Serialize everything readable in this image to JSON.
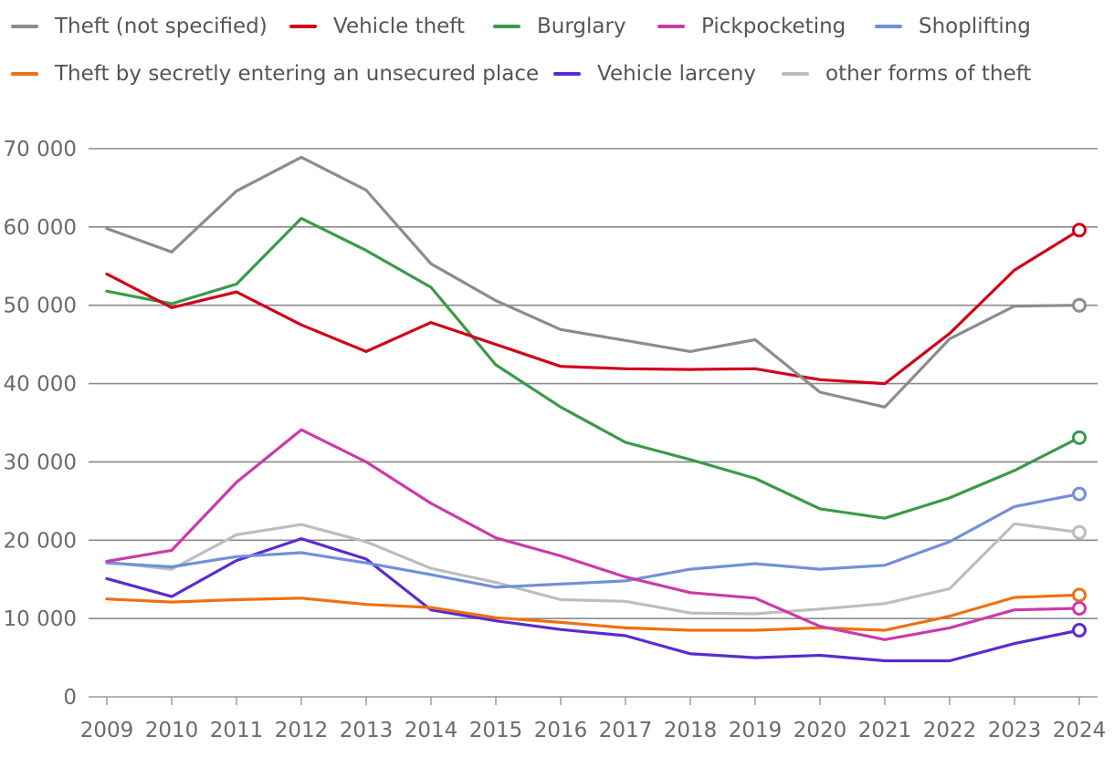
{
  "chart_data": {
    "type": "line",
    "title": "",
    "xlabel": "",
    "ylabel": "",
    "x": [
      "2009",
      "2010",
      "2011",
      "2012",
      "2013",
      "2014",
      "2015",
      "2016",
      "2017",
      "2018",
      "2019",
      "2020",
      "2021",
      "2022",
      "2023",
      "2024"
    ],
    "ylim": [
      0,
      70000
    ],
    "y_ticks": [
      0,
      10000,
      20000,
      30000,
      40000,
      50000,
      60000,
      70000
    ],
    "y_tick_labels": [
      "0",
      "10 000",
      "20 000",
      "30 000",
      "40 000",
      "50 000",
      "60 000",
      "70 000"
    ],
    "grid": true,
    "legend_position": "top",
    "series": [
      {
        "name": "Theft (not specified)",
        "color": "#8c8c8c",
        "values": [
          59800,
          56800,
          64600,
          68900,
          64700,
          55300,
          50600,
          46900,
          45500,
          44100,
          45600,
          38900,
          37000,
          45700,
          49900,
          50000
        ]
      },
      {
        "name": "Vehicle theft",
        "color": "#d0021b",
        "values": [
          54000,
          49700,
          51700,
          47500,
          44100,
          47800,
          45000,
          42200,
          41900,
          41800,
          41900,
          40500,
          40000,
          46400,
          54500,
          59600
        ]
      },
      {
        "name": "Burglary",
        "color": "#3a9a4a",
        "values": [
          51800,
          50200,
          52700,
          61100,
          57000,
          52300,
          42400,
          37000,
          32500,
          30300,
          27900,
          24000,
          22800,
          25400,
          28900,
          33100
        ]
      },
      {
        "name": "Pickpocketing",
        "color": "#cc3aaa",
        "values": [
          17300,
          18700,
          27400,
          34100,
          30000,
          24700,
          20300,
          18000,
          15300,
          13300,
          12600,
          9000,
          7300,
          8800,
          11100,
          11300
        ]
      },
      {
        "name": "Shoplifting",
        "color": "#7090d8",
        "values": [
          17100,
          16600,
          17900,
          18400,
          17100,
          15600,
          14000,
          14400,
          14800,
          16300,
          17000,
          16300,
          16800,
          19800,
          24300,
          25900
        ]
      },
      {
        "name": "Theft by secretly entering an unsecured place",
        "color": "#f07010",
        "values": [
          12500,
          12100,
          12400,
          12600,
          11800,
          11400,
          10100,
          9500,
          8800,
          8500,
          8500,
          8800,
          8500,
          10300,
          12700,
          13000
        ]
      },
      {
        "name": "Vehicle larceny",
        "color": "#5a2bd0",
        "values": [
          15100,
          12800,
          17400,
          20200,
          17600,
          11100,
          9700,
          8600,
          7800,
          5500,
          5000,
          5300,
          4600,
          4600,
          6800,
          8500
        ]
      },
      {
        "name": "other forms of theft",
        "color": "#bdbdbd",
        "values": [
          17200,
          16300,
          20700,
          22000,
          19800,
          16400,
          14600,
          12400,
          12200,
          10700,
          10600,
          11200,
          11900,
          13800,
          22100,
          21000
        ]
      }
    ]
  }
}
